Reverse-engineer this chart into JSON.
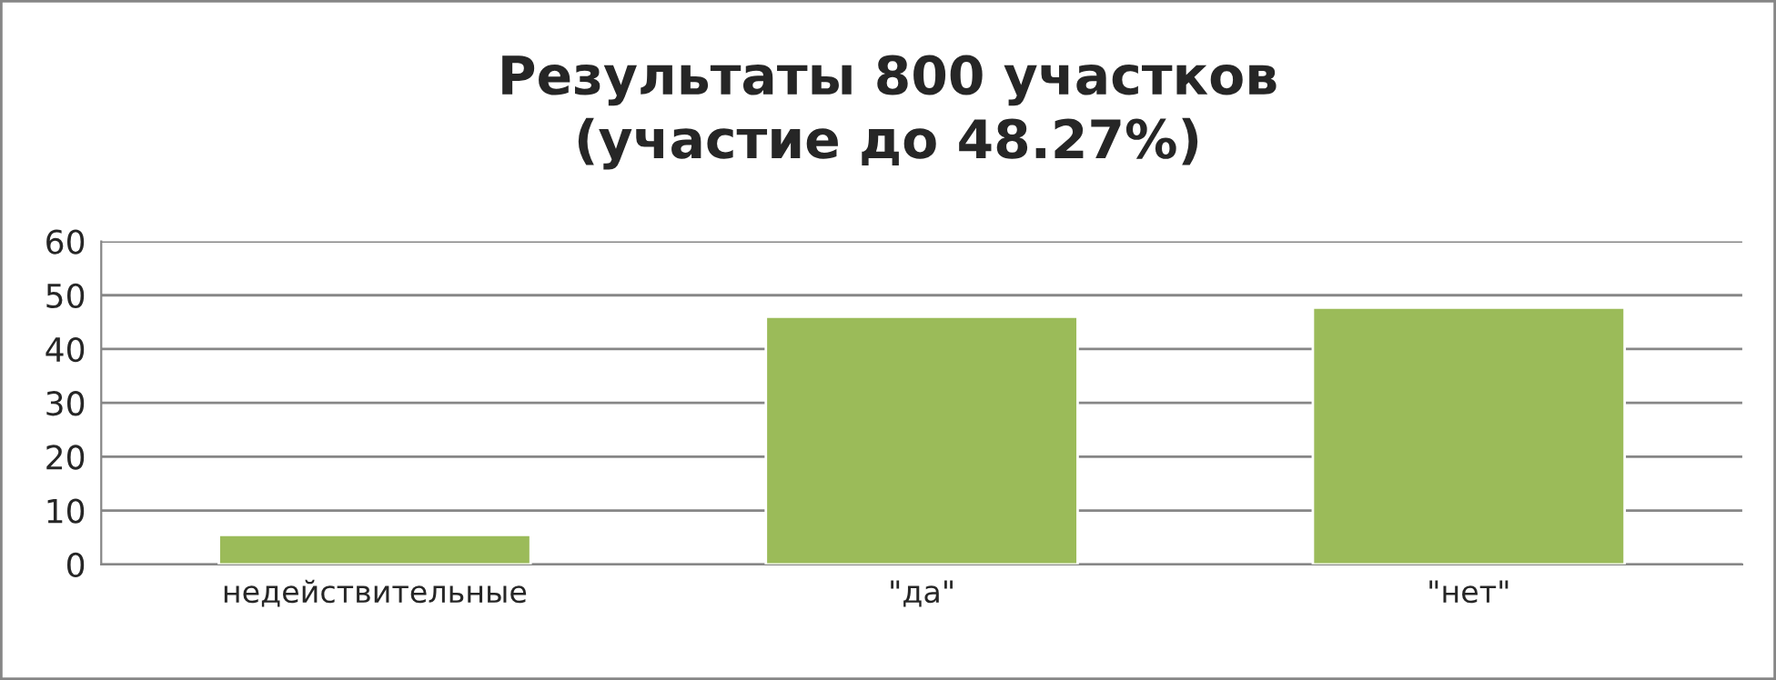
{
  "chart_data": {
    "type": "bar",
    "title": "Результаты 800 участков\n(участие до 48.27%)",
    "categories": [
      "недействительные",
      "\"да\"",
      "\"нет\""
    ],
    "values": [
      5.5,
      46,
      47.7
    ],
    "color": "#9bbb59",
    "ylim": [
      0,
      60
    ],
    "yticks": [
      0,
      10,
      20,
      30,
      40,
      50,
      60
    ],
    "grid": "y"
  }
}
